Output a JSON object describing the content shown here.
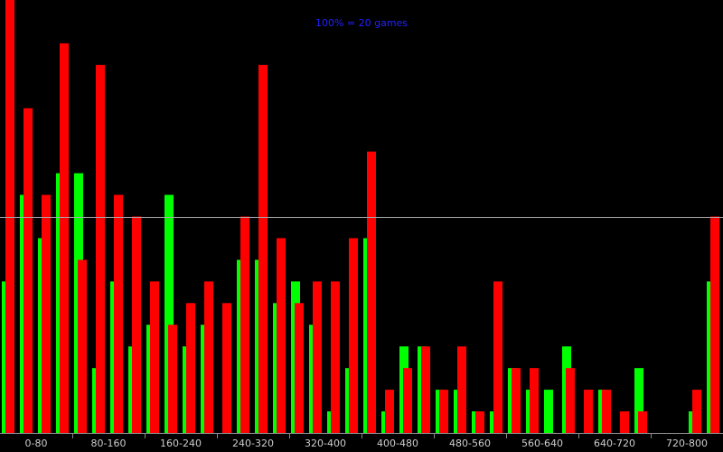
{
  "chart_data": {
    "type": "bar",
    "title": "100% = 20 games",
    "group_labels": [
      "0-80",
      "80-160",
      "160-240",
      "240-320",
      "320-400",
      "400-480",
      "480-560",
      "560-640",
      "640-720",
      "720-800"
    ],
    "series": [
      {
        "color": "#00ff00",
        "values": [
          70,
          110,
          90,
          120,
          120,
          30,
          70,
          40,
          50,
          110,
          40,
          50,
          0,
          80,
          80,
          60,
          70,
          50,
          10,
          30,
          90,
          10,
          40,
          40,
          20,
          20,
          10,
          10,
          30,
          20,
          20,
          40,
          0,
          20,
          0,
          30,
          0,
          0,
          10,
          70
        ]
      },
      {
        "color": "#ff0000",
        "values": [
          200,
          150,
          110,
          180,
          80,
          170,
          110,
          100,
          70,
          50,
          60,
          70,
          60,
          100,
          170,
          90,
          60,
          70,
          70,
          90,
          130,
          20,
          30,
          40,
          20,
          40,
          10,
          70,
          30,
          30,
          0,
          30,
          20,
          20,
          10,
          10,
          0,
          0,
          20,
          100
        ]
      }
    ],
    "ylim": [
      0,
      200
    ],
    "reference_line": 100
  }
}
